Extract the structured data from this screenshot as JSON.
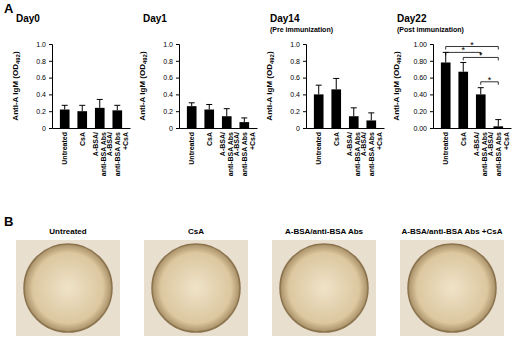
{
  "chart_data": [
    {
      "type": "bar",
      "title": "Day0",
      "ylabel": "Anti-A IgM (OD492)",
      "categories": [
        "Untreated",
        "CsA",
        "A-BSA/anti-BSA Abs",
        "A-BSA/anti-BSA Abs+CsA"
      ],
      "values": [
        0.22,
        0.2,
        0.24,
        0.21
      ],
      "errors": [
        0.05,
        0.07,
        0.1,
        0.06
      ],
      "color": "#000000",
      "ylim": [
        0,
        1
      ],
      "yticks": [
        0,
        0.2,
        0.4,
        0.6,
        0.8,
        {
          "value": 1,
          "label": "1.0"
        }
      ]
    },
    {
      "type": "bar",
      "title": "Day1",
      "ylabel": "Anti-A IgM (OD492)",
      "categories": [
        "Untreated",
        "CsA",
        "A-BSA/anti-BSA Abs",
        "A-BSA/anti-BSA Abs+CsA"
      ],
      "values": [
        0.26,
        0.22,
        0.14,
        0.07
      ],
      "errors": [
        0.04,
        0.06,
        0.09,
        0.05
      ],
      "color": "#000000",
      "ylim": [
        0,
        1
      ],
      "yticks": [
        0,
        0.2,
        0.4,
        0.6,
        0.8,
        {
          "value": 1,
          "label": "1.0"
        }
      ]
    },
    {
      "type": "bar",
      "title": "Day14",
      "subtitle": "(Pre immunization)",
      "ylabel": "Anti-A IgM (OD492)",
      "categories": [
        "Untreated",
        "CsA",
        "A-BSA/anti-BSA Abs",
        "A-BSA/anti-BSA Abs+CsA"
      ],
      "values": [
        0.4,
        0.46,
        0.14,
        0.09
      ],
      "errors": [
        0.11,
        0.13,
        0.1,
        0.09
      ],
      "color": "#000000",
      "ylim": [
        0,
        1
      ],
      "yticks": [
        0,
        0.2,
        0.4,
        0.6,
        0.8,
        {
          "value": 1,
          "label": "1.0"
        }
      ]
    },
    {
      "type": "bar",
      "title": "Day22",
      "subtitle": "(Post immunization)",
      "ylabel": "Anti-A IgM (OD492)",
      "categories": [
        "Untreated",
        "CsA",
        "A-BSA/anti-BSA Abs",
        "A-BSA/anti-BSA Abs+CsA"
      ],
      "values": [
        0.78,
        0.67,
        0.4,
        0.02
      ],
      "errors": [
        0.12,
        0.11,
        0.08,
        0.08
      ],
      "color": "#000000",
      "ylim": [
        0,
        1
      ],
      "yticks": [
        {
          "value": 0,
          "label": "0.00"
        },
        {
          "value": 0.2,
          "label": "0.20"
        },
        {
          "value": 0.4,
          "label": "0.40"
        },
        {
          "value": 0.6,
          "label": "0.60"
        },
        {
          "value": 0.8,
          "label": "0.80"
        },
        {
          "value": 1,
          "label": "1.00"
        }
      ],
      "annotations": [
        {
          "label": "*",
          "from": 0,
          "to": 3,
          "y": 0.97
        },
        {
          "label": "*",
          "from": 0,
          "to": 2,
          "y": 0.9
        },
        {
          "label": "*",
          "from": 1,
          "to": 3,
          "y": 0.84
        },
        {
          "label": "*",
          "from": 2,
          "to": 3,
          "y": 0.55
        }
      ]
    }
  ],
  "panel_labels": [
    "A",
    "B"
  ],
  "images": {
    "captions": [
      "Untreated",
      "CsA",
      "A-BSA/anti-BSA Abs",
      "A-BSA/anti-BSA Abs +CsA"
    ]
  }
}
